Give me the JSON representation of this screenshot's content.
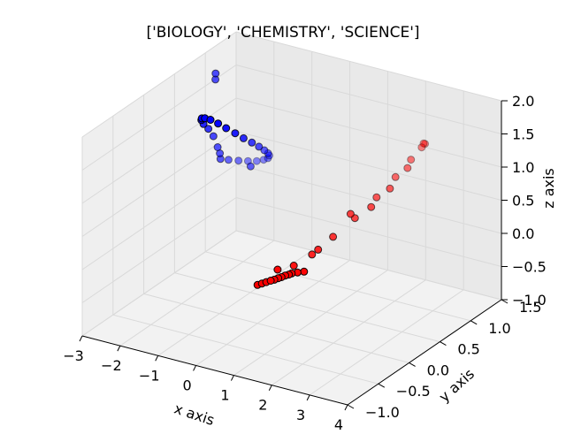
{
  "chart_data": {
    "type": "scatter",
    "projection": "3d",
    "title": "['BIOLOGY', 'CHEMISTRY', 'SCIENCE']",
    "xlabel": "x axis",
    "ylabel": "y axis",
    "zlabel": "z axis",
    "xlim": [
      -3,
      4
    ],
    "ylim": [
      -1.0,
      1.5
    ],
    "zlim": [
      -1.0,
      2.0
    ],
    "x_ticks": [
      "−3",
      "−2",
      "−1",
      "0",
      "1",
      "2",
      "3",
      "4"
    ],
    "y_ticks": [
      "−1.0",
      "−0.5",
      "0.0",
      "0.5",
      "1.0",
      "1.5"
    ],
    "z_ticks": [
      "−1.0",
      "−0.5",
      "0.0",
      "0.5",
      "1.0",
      "1.5",
      "2.0"
    ],
    "grid": true,
    "series": [
      {
        "color": "#0000ff",
        "points": [
          {
            "x": -2.6,
            "y": 1.0,
            "z": 0.46
          },
          {
            "x": -2.55,
            "y": 1.1,
            "z": 0.39
          },
          {
            "x": -2.45,
            "y": 1.2,
            "z": 0.33
          },
          {
            "x": -2.33,
            "y": 1.28,
            "z": 0.29
          },
          {
            "x": -2.18,
            "y": 1.33,
            "z": 0.28
          },
          {
            "x": -2.03,
            "y": 1.35,
            "z": 0.31
          },
          {
            "x": -1.9,
            "y": 1.34,
            "z": 0.36
          },
          {
            "x": -1.8,
            "y": 1.3,
            "z": 0.44
          },
          {
            "x": -1.72,
            "y": 1.23,
            "z": 0.53
          },
          {
            "x": -1.67,
            "y": 1.14,
            "z": 0.64
          },
          {
            "x": -1.65,
            "y": 1.04,
            "z": 0.76
          },
          {
            "x": -1.66,
            "y": 0.93,
            "z": 0.89
          },
          {
            "x": -1.7,
            "y": 0.82,
            "z": 1.02
          },
          {
            "x": -1.76,
            "y": 0.72,
            "z": 1.15
          },
          {
            "x": -1.85,
            "y": 0.63,
            "z": 1.27
          },
          {
            "x": -1.95,
            "y": 0.56,
            "z": 1.37
          },
          {
            "x": -2.07,
            "y": 0.51,
            "z": 1.44
          },
          {
            "x": -2.2,
            "y": 0.5,
            "z": 1.45
          },
          {
            "x": -2.33,
            "y": 0.53,
            "z": 1.41
          },
          {
            "x": -2.44,
            "y": 0.59,
            "z": 1.33
          },
          {
            "x": -2.53,
            "y": 0.68,
            "z": 1.2
          },
          {
            "x": -2.58,
            "y": 0.79,
            "z": 1.05
          },
          {
            "x": -2.61,
            "y": 0.89,
            "z": 0.87
          },
          {
            "x": -2.61,
            "y": 0.96,
            "z": 0.66
          },
          {
            "x": -2.6,
            "y": 0.99,
            "z": 0.55
          },
          {
            "x": -2.0,
            "y": 1.12,
            "z": 0.36
          },
          {
            "x": -2.6,
            "y": 0.92,
            "z": 1.8
          },
          {
            "x": -2.62,
            "y": 0.93,
            "z": 1.7
          }
        ]
      },
      {
        "color": "#ff0000",
        "points": [
          {
            "x": 1.0,
            "y": 0.14,
            "z": -0.16
          },
          {
            "x": 0.86,
            "y": 0.12,
            "z": -0.18
          },
          {
            "x": 0.74,
            "y": 0.1,
            "z": -0.2
          },
          {
            "x": 0.68,
            "y": 0.09,
            "z": -0.22
          },
          {
            "x": 0.6,
            "y": 0.08,
            "z": -0.24
          },
          {
            "x": 0.52,
            "y": 0.07,
            "z": -0.27
          },
          {
            "x": 0.2,
            "y": 0.02,
            "z": -0.36
          },
          {
            "x": 0.3,
            "y": 0.03,
            "z": -0.33
          },
          {
            "x": 0.38,
            "y": 0.04,
            "z": -0.31
          },
          {
            "x": 0.1,
            "y": 0.01,
            "z": -0.39
          },
          {
            "x": 0.45,
            "y": 0.06,
            "z": -0.29
          },
          {
            "x": 0.0,
            "y": 0.0,
            "z": -0.42
          },
          {
            "x": 0.4,
            "y": 0.08,
            "z": -0.18
          },
          {
            "x": 0.6,
            "y": 0.22,
            "z": -0.18
          },
          {
            "x": 0.82,
            "y": 0.38,
            "z": -0.08
          },
          {
            "x": 1.1,
            "y": 0.55,
            "z": 0.12
          },
          {
            "x": 1.4,
            "y": 0.72,
            "z": 0.34
          },
          {
            "x": 1.68,
            "y": 0.9,
            "z": 0.58
          },
          {
            "x": 1.92,
            "y": 1.06,
            "z": 0.82
          },
          {
            "x": 2.1,
            "y": 1.2,
            "z": 1.02
          },
          {
            "x": 2.22,
            "y": 1.3,
            "z": 1.16
          },
          {
            "x": 2.26,
            "y": 1.33,
            "z": 1.2
          },
          {
            "x": 2.24,
            "y": 1.32,
            "z": 1.21
          },
          {
            "x": 1.35,
            "y": 0.68,
            "z": 0.42
          },
          {
            "x": 1.7,
            "y": 0.8,
            "z": 0.5
          },
          {
            "x": 1.95,
            "y": 0.95,
            "z": 0.72
          },
          {
            "x": 2.14,
            "y": 1.12,
            "z": 0.95
          },
          {
            "x": 0.95,
            "y": 0.4,
            "z": 0.0
          }
        ]
      }
    ]
  }
}
